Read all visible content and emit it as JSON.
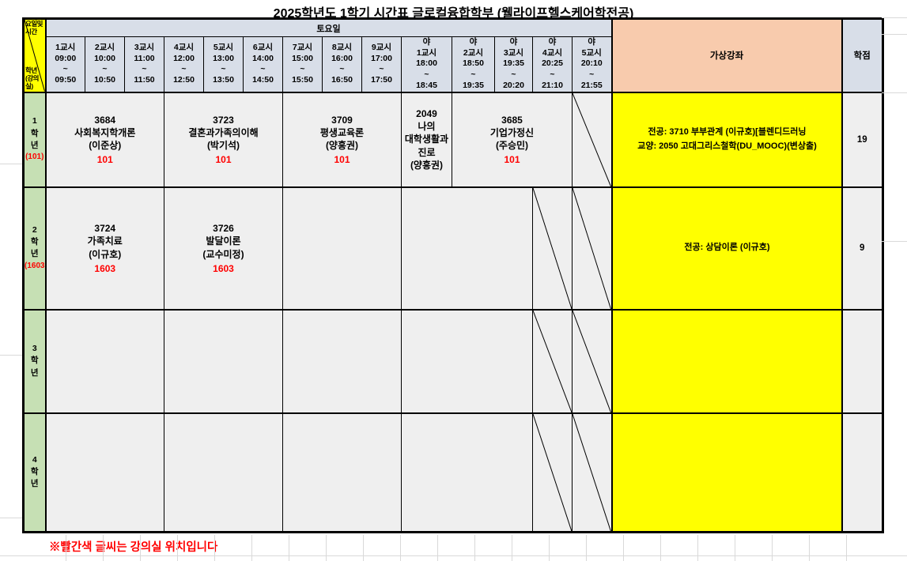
{
  "title": "2025학년도 1학기 시간표 글로컬융합학부 (웰라이프헬스케어학전공)",
  "header": {
    "corner_top": "요일및시간",
    "corner_bottom": "학년\n(강의실)",
    "day": "토요일",
    "virtual_col": "가상강좌",
    "credits_col": "학점"
  },
  "periods": [
    "1교시\n09:00\n~\n09:50",
    "2교시\n10:00\n~\n10:50",
    "3교시\n11:00\n~\n11:50",
    "4교시\n12:00\n~\n12:50",
    "5교시\n13:00\n~\n13:50",
    "6교시\n14:00\n~\n14:50",
    "7교시\n15:00\n~\n15:50",
    "8교시\n16:00\n~\n16:50",
    "9교시\n17:00\n~\n17:50",
    "야\n1교시\n18:00\n~\n18:45",
    "야\n2교시\n18:50\n~\n19:35",
    "야\n3교시\n19:35\n~\n20:20",
    "야\n4교시\n20:25\n~\n21:10",
    "야\n5교시\n20:10\n~\n21:55"
  ],
  "rows": [
    {
      "grade": "1\n학\n년",
      "room": "(101)",
      "c1": {
        "main": "3684\n사회복지학개론\n(이준상)",
        "room": "101"
      },
      "c2": {
        "main": "3723\n결혼과가족의이해\n(박기석)",
        "room": "101"
      },
      "c3": {
        "main": "3709\n평생교육론\n(양흥권)",
        "room": "101"
      },
      "n1": {
        "main": "2049\n나의\n대학생활과\n진로\n(양흥권)"
      },
      "n24": {
        "main": "3685\n기업가정신\n(주승민)",
        "room": "101"
      },
      "virtual": "전공: 3710 부부관계 (이규호)[블렌디드러닝\n교양: 2050 고대그리스철학(DU_MOOC)(변상출)",
      "credits": "19"
    },
    {
      "grade": "2\n학\n년",
      "room": "(1603)",
      "c1": {
        "main": "3724\n가족치료\n(이규호)",
        "room": "1603"
      },
      "c2": {
        "main": "3726\n발달이론\n(교수미정)",
        "room": "1603"
      },
      "virtual": "전공: 상담이론 (이규호)",
      "credits": "9"
    },
    {
      "grade": "3\n학\n년",
      "room": "",
      "virtual": "",
      "credits": ""
    },
    {
      "grade": "4\n학\n년",
      "room": "",
      "virtual": "",
      "credits": ""
    }
  ],
  "footer_note": "※빨간색 글씨는 강의실 위치입니다",
  "colors": {
    "header_bg": "#d8dee8",
    "virtual_header_bg": "#f8cbad",
    "virtual_cell_bg": "#ffff00",
    "grade_bg": "#c6e0b4",
    "body_bg": "#efefef",
    "corner_bg": "#ffff00",
    "room_text": "#ff0000",
    "note_text": "#ff0000"
  }
}
